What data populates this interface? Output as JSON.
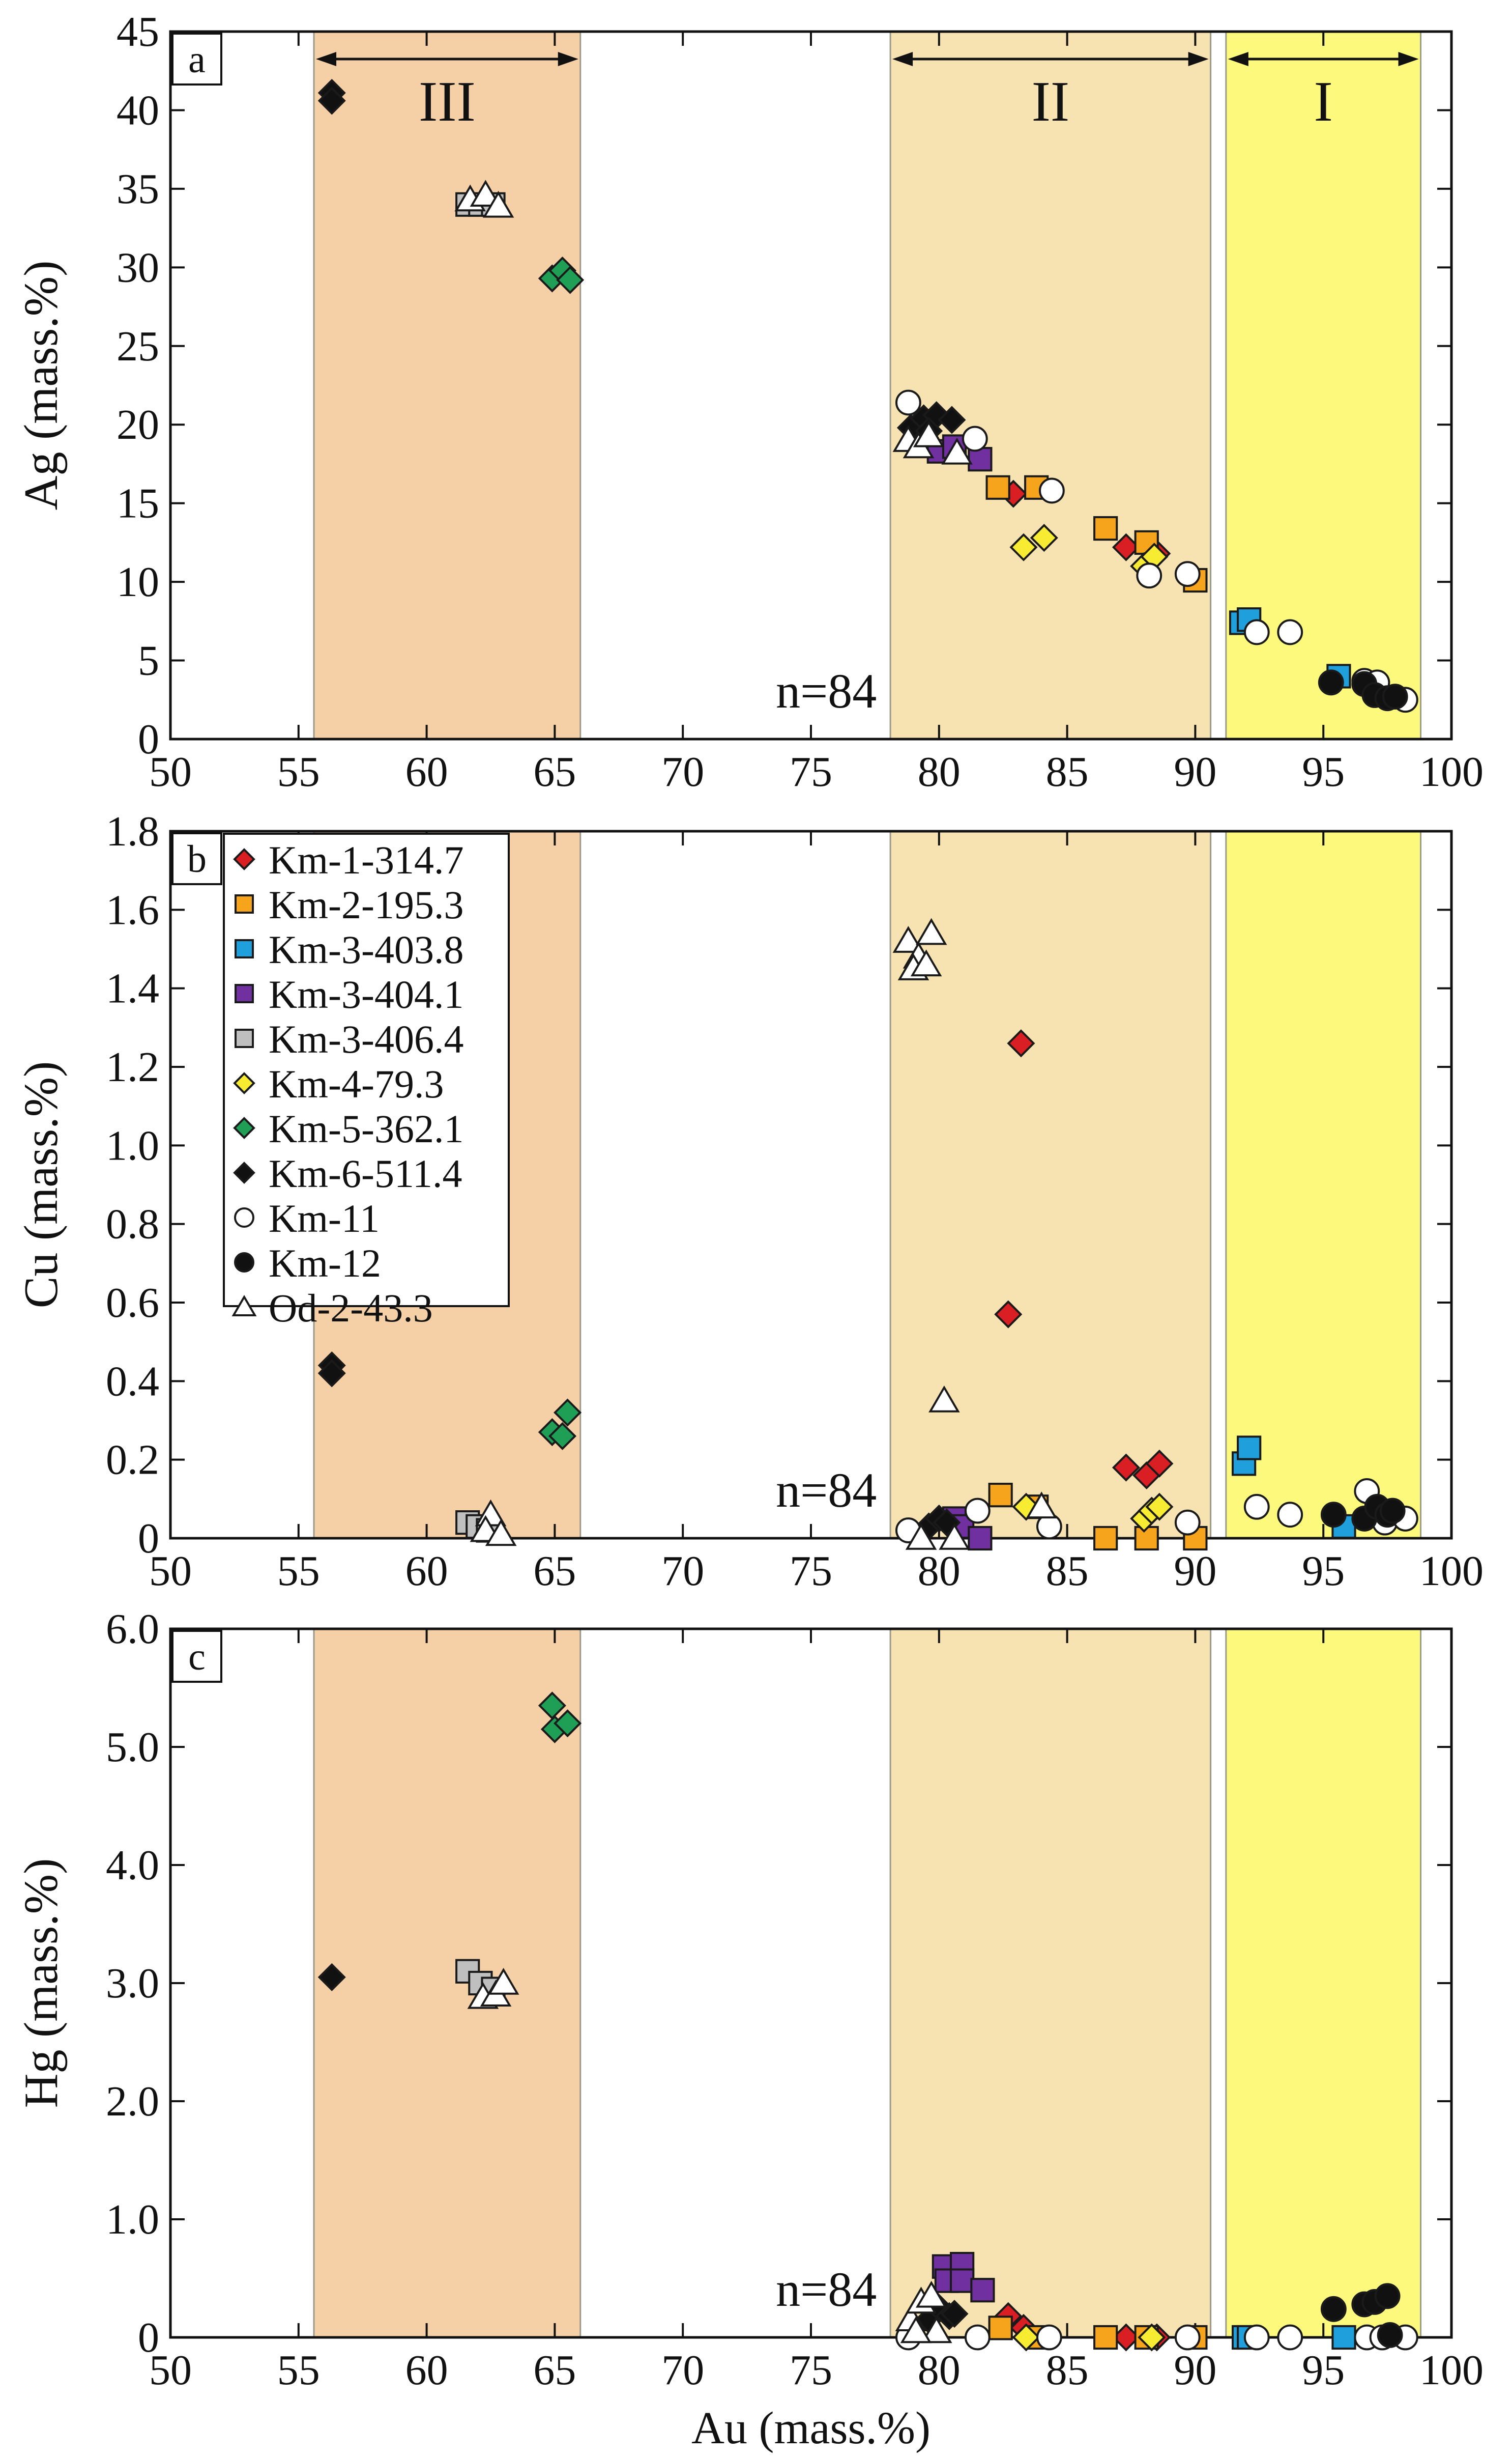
{
  "chart_data": [
    {
      "panel": "a",
      "type": "scatter",
      "xlabel": "",
      "ylabel": "Ag (mass.%)",
      "xlim": [
        50,
        100
      ],
      "ylim": [
        0,
        45
      ],
      "xticks": [
        "50",
        "55",
        "60",
        "65",
        "70",
        "75",
        "80",
        "85",
        "90",
        "95",
        "100"
      ],
      "yticks": [
        "0",
        "5",
        "10",
        "15",
        "20",
        "25",
        "30",
        "35",
        "40",
        "45"
      ],
      "n_label": "n=84",
      "zones": [
        {
          "label": "III",
          "x0": 55.6,
          "x1": 66.0,
          "color": "#f5cfa6",
          "arrow": true
        },
        {
          "label": "II",
          "x0": 78.1,
          "x1": 90.6,
          "color": "#f7e3b2",
          "arrow": true
        },
        {
          "label": "I",
          "x0": 91.2,
          "x1": 98.8,
          "color": "#fcf97c",
          "arrow": true
        }
      ],
      "series": [
        {
          "name": "Km-1-314.7",
          "points": [
            [
              82.9,
              15.6
            ],
            [
              87.3,
              12.2
            ],
            [
              88.5,
              11.8
            ]
          ]
        },
        {
          "name": "Km-2-195.3",
          "points": [
            [
              82.3,
              16.0
            ],
            [
              83.8,
              16.0
            ],
            [
              86.5,
              13.4
            ],
            [
              88.1,
              12.5
            ],
            [
              90.0,
              10.1
            ]
          ]
        },
        {
          "name": "Km-3-403.8",
          "points": [
            [
              91.8,
              7.4
            ],
            [
              92.1,
              7.6
            ],
            [
              95.6,
              4.0
            ]
          ]
        },
        {
          "name": "Km-3-404.1",
          "points": [
            [
              80.0,
              18.3
            ],
            [
              80.6,
              18.6
            ],
            [
              81.6,
              17.8
            ]
          ]
        },
        {
          "name": "Km-3-406.4",
          "points": [
            [
              61.6,
              34.0
            ],
            [
              62.1,
              34.0
            ],
            [
              62.6,
              34.0
            ]
          ]
        },
        {
          "name": "Km-4-79.3",
          "points": [
            [
              83.3,
              12.2
            ],
            [
              84.1,
              12.8
            ],
            [
              88.0,
              11.0
            ],
            [
              88.4,
              11.6
            ]
          ]
        },
        {
          "name": "Km-5-362.1",
          "points": [
            [
              64.9,
              29.3
            ],
            [
              65.3,
              29.8
            ],
            [
              65.6,
              29.2
            ]
          ]
        },
        {
          "name": "Km-6-511.4",
          "points": [
            [
              56.3,
              41.1
            ],
            [
              56.3,
              40.6
            ],
            [
              78.9,
              19.8
            ],
            [
              79.4,
              20.4
            ],
            [
              79.9,
              20.6
            ],
            [
              80.5,
              20.3
            ],
            [
              79.6,
              19.6
            ]
          ]
        },
        {
          "name": "Km-11",
          "points": [
            [
              78.8,
              21.4
            ],
            [
              81.4,
              19.1
            ],
            [
              84.4,
              15.8
            ],
            [
              88.2,
              10.4
            ],
            [
              89.7,
              10.5
            ],
            [
              92.4,
              6.8
            ],
            [
              93.7,
              6.8
            ],
            [
              96.6,
              3.7
            ],
            [
              97.1,
              3.6
            ],
            [
              98.2,
              2.5
            ]
          ]
        },
        {
          "name": "Km-12",
          "points": [
            [
              95.3,
              3.6
            ],
            [
              96.6,
              3.5
            ],
            [
              97.0,
              2.8
            ],
            [
              97.5,
              2.6
            ],
            [
              97.8,
              2.7
            ]
          ]
        },
        {
          "name": "Od-2-43.3",
          "points": [
            [
              61.7,
              34.3
            ],
            [
              62.3,
              34.6
            ],
            [
              62.8,
              33.9
            ],
            [
              78.8,
              19.0
            ],
            [
              79.2,
              18.6
            ],
            [
              79.6,
              19.3
            ],
            [
              80.7,
              18.2
            ]
          ]
        }
      ]
    },
    {
      "panel": "b",
      "type": "scatter",
      "xlabel": "",
      "ylabel": "Cu (mass.%)",
      "xlim": [
        50,
        100
      ],
      "ylim": [
        0,
        1.8
      ],
      "xticks": [
        "50",
        "55",
        "60",
        "65",
        "70",
        "75",
        "80",
        "85",
        "90",
        "95",
        "100"
      ],
      "yticks": [
        "0",
        "0.2",
        "0.4",
        "0.6",
        "0.8",
        "1.0",
        "1.2",
        "1.4",
        "1.6",
        "1.8"
      ],
      "n_label": "n=84",
      "zones": [
        {
          "label": "",
          "x0": 55.6,
          "x1": 66.0,
          "color": "#f5cfa6",
          "arrow": false
        },
        {
          "label": "",
          "x0": 78.1,
          "x1": 90.6,
          "color": "#f7e3b2",
          "arrow": false
        },
        {
          "label": "",
          "x0": 91.2,
          "x1": 98.8,
          "color": "#fcf97c",
          "arrow": false
        }
      ],
      "series": [
        {
          "name": "Km-1-314.7",
          "points": [
            [
              83.2,
              1.26
            ],
            [
              82.7,
              0.57
            ],
            [
              87.3,
              0.18
            ],
            [
              88.1,
              0.16
            ],
            [
              88.6,
              0.19
            ]
          ]
        },
        {
          "name": "Km-2-195.3",
          "points": [
            [
              82.4,
              0.11
            ],
            [
              83.8,
              0.08
            ],
            [
              86.5,
              0.0
            ],
            [
              88.1,
              0.0
            ],
            [
              90.0,
              0.0
            ]
          ]
        },
        {
          "name": "Km-3-403.8",
          "points": [
            [
              91.9,
              0.19
            ],
            [
              92.1,
              0.23
            ],
            [
              95.8,
              0.03
            ]
          ]
        },
        {
          "name": "Km-3-404.1",
          "points": [
            [
              80.6,
              0.05
            ],
            [
              80.9,
              0.03
            ],
            [
              81.6,
              0.0
            ]
          ]
        },
        {
          "name": "Km-3-406.4",
          "points": [
            [
              61.6,
              0.04
            ],
            [
              62.0,
              0.03
            ],
            [
              62.4,
              0.02
            ]
          ]
        },
        {
          "name": "Km-4-79.3",
          "points": [
            [
              83.4,
              0.08
            ],
            [
              88.0,
              0.05
            ],
            [
              88.3,
              0.07
            ],
            [
              88.6,
              0.08
            ]
          ]
        },
        {
          "name": "Km-5-362.1",
          "points": [
            [
              64.9,
              0.27
            ],
            [
              65.3,
              0.26
            ],
            [
              65.5,
              0.32
            ]
          ]
        },
        {
          "name": "Km-6-511.4",
          "points": [
            [
              56.3,
              0.44
            ],
            [
              56.3,
              0.42
            ],
            [
              79.6,
              0.03
            ],
            [
              80.0,
              0.05
            ],
            [
              80.3,
              0.04
            ]
          ]
        },
        {
          "name": "Km-11",
          "points": [
            [
              78.8,
              0.02
            ],
            [
              81.5,
              0.07
            ],
            [
              84.3,
              0.03
            ],
            [
              89.7,
              0.04
            ],
            [
              92.4,
              0.08
            ],
            [
              93.7,
              0.06
            ],
            [
              96.7,
              0.12
            ],
            [
              97.4,
              0.04
            ],
            [
              98.2,
              0.05
            ]
          ]
        },
        {
          "name": "Km-12",
          "points": [
            [
              95.4,
              0.06
            ],
            [
              96.6,
              0.05
            ],
            [
              97.1,
              0.08
            ],
            [
              97.5,
              0.06
            ],
            [
              97.7,
              0.07
            ]
          ]
        },
        {
          "name": "Od-2-43.3",
          "points": [
            [
              78.8,
              1.52
            ],
            [
              79.2,
              1.48
            ],
            [
              79.7,
              1.54
            ],
            [
              79.0,
              1.45
            ],
            [
              79.5,
              1.46
            ],
            [
              80.2,
              0.35
            ],
            [
              62.5,
              0.06
            ],
            [
              62.3,
              0.02
            ],
            [
              62.9,
              0.01
            ],
            [
              79.3,
              0.0
            ],
            [
              80.6,
              0.0
            ],
            [
              84.0,
              0.08
            ]
          ]
        }
      ]
    },
    {
      "panel": "c",
      "type": "scatter",
      "xlabel": "Au (mass.%)",
      "ylabel": "Hg (mass.%)",
      "xlim": [
        50,
        100
      ],
      "ylim": [
        0,
        6
      ],
      "xticks": [
        "50",
        "55",
        "60",
        "65",
        "70",
        "75",
        "80",
        "85",
        "90",
        "95",
        "100"
      ],
      "yticks": [
        "0",
        "1.0",
        "2.0",
        "3.0",
        "4.0",
        "5.0",
        "6.0"
      ],
      "n_label": "n=84",
      "zones": [
        {
          "label": "",
          "x0": 55.6,
          "x1": 66.0,
          "color": "#f5cfa6",
          "arrow": false
        },
        {
          "label": "",
          "x0": 78.1,
          "x1": 90.6,
          "color": "#f7e3b2",
          "arrow": false
        },
        {
          "label": "",
          "x0": 91.2,
          "x1": 98.8,
          "color": "#fcf97c",
          "arrow": false
        }
      ],
      "series": [
        {
          "name": "Km-1-314.7",
          "points": [
            [
              82.7,
              0.18
            ],
            [
              83.3,
              0.08
            ],
            [
              87.3,
              0.0
            ],
            [
              88.5,
              0.0
            ]
          ]
        },
        {
          "name": "Km-2-195.3",
          "points": [
            [
              82.4,
              0.08
            ],
            [
              83.8,
              0.0
            ],
            [
              86.5,
              0.0
            ],
            [
              88.1,
              0.0
            ],
            [
              90.0,
              0.0
            ]
          ]
        },
        {
          "name": "Km-3-403.8",
          "points": [
            [
              91.9,
              0.0
            ],
            [
              92.1,
              0.0
            ],
            [
              95.8,
              0.0
            ]
          ]
        },
        {
          "name": "Km-3-404.1",
          "points": [
            [
              80.2,
              0.6
            ],
            [
              80.9,
              0.62
            ],
            [
              80.3,
              0.48
            ],
            [
              80.9,
              0.48
            ],
            [
              81.7,
              0.4
            ]
          ]
        },
        {
          "name": "Km-3-406.4",
          "points": [
            [
              61.6,
              3.1
            ],
            [
              62.1,
              3.0
            ],
            [
              62.6,
              2.95
            ]
          ]
        },
        {
          "name": "Km-4-79.3",
          "points": [
            [
              83.4,
              0.0
            ],
            [
              88.3,
              0.0
            ]
          ]
        },
        {
          "name": "Km-5-362.1",
          "points": [
            [
              64.9,
              5.35
            ],
            [
              65.0,
              5.15
            ],
            [
              65.5,
              5.2
            ]
          ]
        },
        {
          "name": "Km-6-511.4",
          "points": [
            [
              56.3,
              3.05
            ],
            [
              79.6,
              0.15
            ],
            [
              80.0,
              0.25
            ],
            [
              80.4,
              0.18
            ],
            [
              80.6,
              0.2
            ]
          ]
        },
        {
          "name": "Km-11",
          "points": [
            [
              78.8,
              0.0
            ],
            [
              81.5,
              0.0
            ],
            [
              84.3,
              0.0
            ],
            [
              89.7,
              0.0
            ],
            [
              92.4,
              0.0
            ],
            [
              93.7,
              0.0
            ],
            [
              96.7,
              0.0
            ],
            [
              97.3,
              0.0
            ],
            [
              98.2,
              0.0
            ]
          ]
        },
        {
          "name": "Km-12",
          "points": [
            [
              95.4,
              0.24
            ],
            [
              96.6,
              0.28
            ],
            [
              97.0,
              0.3
            ],
            [
              97.5,
              0.35
            ],
            [
              97.6,
              0.02
            ]
          ]
        },
        {
          "name": "Od-2-43.3",
          "points": [
            [
              78.9,
              0.15
            ],
            [
              79.3,
              0.3
            ],
            [
              79.7,
              0.35
            ],
            [
              79.9,
              0.05
            ],
            [
              79.1,
              0.05
            ],
            [
              62.2,
              2.88
            ],
            [
              62.7,
              2.9
            ],
            [
              63.0,
              3.0
            ]
          ]
        }
      ]
    }
  ],
  "legend": [
    {
      "name": "Km-1-314.7",
      "marker": "diamond",
      "fill": "#d91e24"
    },
    {
      "name": "Km-2-195.3",
      "marker": "square",
      "fill": "#f5a41c"
    },
    {
      "name": "Km-3-403.8",
      "marker": "square",
      "fill": "#1fa0dc"
    },
    {
      "name": "Km-3-404.1",
      "marker": "square",
      "fill": "#7030a0"
    },
    {
      "name": "Km-3-406.4",
      "marker": "square",
      "fill": "#bfbfbf"
    },
    {
      "name": "Km-4-79.3",
      "marker": "diamond",
      "fill": "#f7ec32"
    },
    {
      "name": "Km-5-362.1",
      "marker": "diamond",
      "fill": "#1f9e55"
    },
    {
      "name": "Km-6-511.4",
      "marker": "diamond",
      "fill": "#111111"
    },
    {
      "name": "Km-11",
      "marker": "circle",
      "fill": "#ffffff"
    },
    {
      "name": "Km-12",
      "marker": "circle",
      "fill": "#111111"
    },
    {
      "name": "Od-2-43.3",
      "marker": "triangle",
      "fill": "#ffffff"
    }
  ]
}
